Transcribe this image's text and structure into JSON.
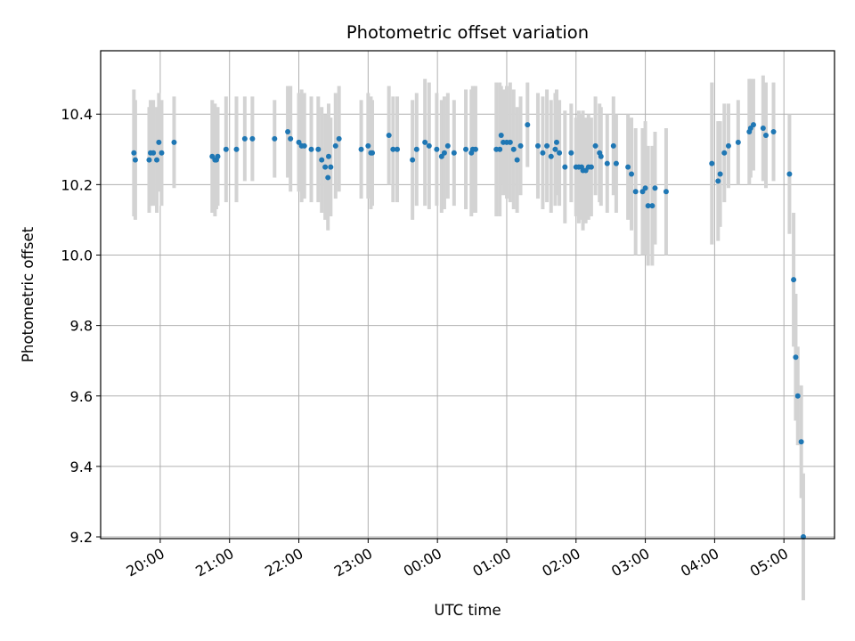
{
  "chart_data": {
    "type": "scatter",
    "title": "Photometric offset variation",
    "xlabel": "UTC time",
    "ylabel": "Photometric offset",
    "grid": true,
    "x_ticks": [
      "20:00",
      "21:00",
      "22:00",
      "23:00",
      "00:00",
      "01:00",
      "02:00",
      "03:00",
      "04:00",
      "05:00"
    ],
    "x_tick_hours": [
      0,
      1,
      2,
      3,
      4,
      5,
      6,
      7,
      8,
      9
    ],
    "x_origin_label": "20:00",
    "xlim_hours": [
      -0.86,
      9.73
    ],
    "y_ticks": [
      "9.2",
      "9.4",
      "9.6",
      "9.8",
      "10.0",
      "10.2",
      "10.4"
    ],
    "ylim": [
      9.195,
      10.58
    ],
    "colors": {
      "point": "#1f77b4",
      "errorbar": "#d3d3d3",
      "grid": "#b0b0b0"
    },
    "series": [
      {
        "x": [
          -0.38,
          -0.36,
          -0.16,
          -0.14,
          -0.1,
          -0.05,
          -0.02,
          0.02,
          0.2,
          0.75,
          0.79,
          0.81,
          0.83,
          0.95,
          1.1,
          1.22,
          1.33,
          1.65,
          1.84,
          1.88,
          2.0,
          2.04,
          2.08,
          2.18,
          2.28,
          2.33,
          2.38,
          2.42,
          2.43,
          2.46,
          2.53,
          2.58,
          2.9,
          3.0,
          3.04,
          3.06,
          3.3,
          3.36,
          3.42,
          3.64,
          3.7,
          3.82,
          3.88,
          3.99,
          4.06,
          4.1,
          4.15,
          4.24,
          4.41,
          4.49,
          4.51,
          4.55,
          4.85,
          4.9,
          4.92,
          4.95,
          5.0,
          5.05,
          5.1,
          5.15,
          5.2,
          5.3,
          5.45,
          5.52,
          5.58,
          5.64,
          5.7,
          5.72,
          5.76,
          5.84,
          5.93,
          6.0,
          6.04,
          6.08,
          6.1,
          6.14,
          6.18,
          6.22,
          6.28,
          6.34,
          6.36,
          6.45,
          6.54,
          6.58,
          6.75,
          6.8,
          6.86,
          6.96,
          7.0,
          7.04,
          7.1,
          7.14,
          7.3,
          7.96,
          8.05,
          8.08,
          8.14,
          8.2,
          8.34,
          8.5,
          8.52,
          8.56,
          8.7,
          8.74,
          8.85,
          9.08,
          9.14,
          9.17,
          9.2,
          9.25,
          9.28
        ],
        "y": [
          10.29,
          10.27,
          10.27,
          10.29,
          10.29,
          10.27,
          10.32,
          10.29,
          10.32,
          10.28,
          10.27,
          10.27,
          10.28,
          10.3,
          10.3,
          10.33,
          10.33,
          10.33,
          10.35,
          10.33,
          10.32,
          10.31,
          10.31,
          10.3,
          10.3,
          10.27,
          10.25,
          10.22,
          10.28,
          10.25,
          10.31,
          10.33,
          10.3,
          10.31,
          10.29,
          10.29,
          10.34,
          10.3,
          10.3,
          10.27,
          10.3,
          10.32,
          10.31,
          10.3,
          10.28,
          10.29,
          10.31,
          10.29,
          10.3,
          10.29,
          10.3,
          10.3,
          10.3,
          10.3,
          10.34,
          10.32,
          10.32,
          10.32,
          10.3,
          10.27,
          10.31,
          10.37,
          10.31,
          10.29,
          10.31,
          10.28,
          10.3,
          10.32,
          10.29,
          10.25,
          10.29,
          10.25,
          10.25,
          10.25,
          10.24,
          10.24,
          10.25,
          10.25,
          10.31,
          10.29,
          10.28,
          10.26,
          10.31,
          10.26,
          10.25,
          10.23,
          10.18,
          10.18,
          10.19,
          10.14,
          10.14,
          10.19,
          10.18,
          10.26,
          10.21,
          10.23,
          10.29,
          10.31,
          10.32,
          10.35,
          10.36,
          10.37,
          10.36,
          10.34,
          10.35,
          10.23,
          9.93,
          9.71,
          9.6,
          9.47,
          9.2
        ],
        "yerr": [
          0.18,
          0.17,
          0.15,
          0.15,
          0.15,
          0.15,
          0.14,
          0.15,
          0.13,
          0.16,
          0.16,
          0.14,
          0.14,
          0.15,
          0.15,
          0.12,
          0.12,
          0.11,
          0.13,
          0.15,
          0.14,
          0.16,
          0.15,
          0.15,
          0.15,
          0.15,
          0.15,
          0.15,
          0.15,
          0.14,
          0.15,
          0.15,
          0.14,
          0.15,
          0.16,
          0.15,
          0.14,
          0.15,
          0.15,
          0.17,
          0.16,
          0.18,
          0.18,
          0.16,
          0.16,
          0.16,
          0.15,
          0.15,
          0.17,
          0.18,
          0.18,
          0.18,
          0.19,
          0.19,
          0.14,
          0.15,
          0.16,
          0.17,
          0.17,
          0.15,
          0.14,
          0.12,
          0.15,
          0.16,
          0.16,
          0.16,
          0.16,
          0.15,
          0.15,
          0.16,
          0.14,
          0.14,
          0.16,
          0.15,
          0.17,
          0.15,
          0.15,
          0.14,
          0.14,
          0.14,
          0.14,
          0.14,
          0.14,
          0.14,
          0.15,
          0.16,
          0.18,
          0.18,
          0.19,
          0.17,
          0.17,
          0.16,
          0.18,
          0.23,
          0.17,
          0.15,
          0.14,
          0.12,
          0.12,
          0.15,
          0.14,
          0.13,
          0.15,
          0.15,
          0.14,
          0.17,
          0.19,
          0.18,
          0.14,
          0.16,
          0.18
        ]
      }
    ]
  }
}
